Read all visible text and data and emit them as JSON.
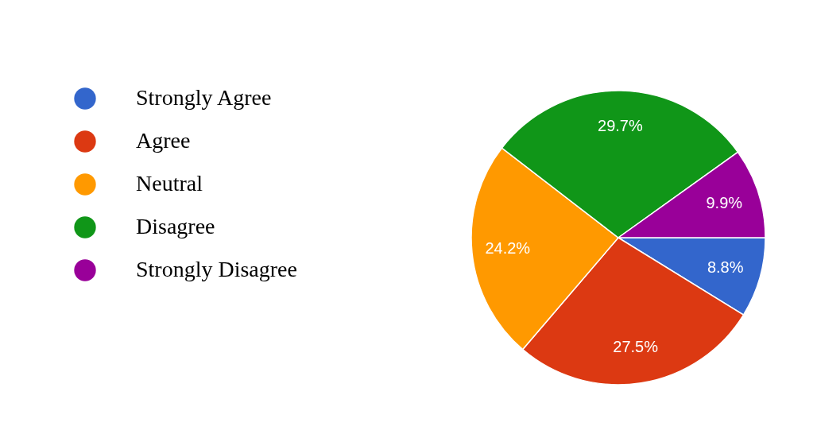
{
  "chart_data": {
    "type": "pie",
    "categories": [
      "Strongly Agree",
      "Agree",
      "Neutral",
      "Disagree",
      "Strongly Disagree"
    ],
    "values": [
      8.8,
      27.5,
      24.2,
      29.7,
      9.9
    ],
    "colors": [
      "#3366cc",
      "#dc3912",
      "#ff9900",
      "#109618",
      "#990099"
    ],
    "value_labels": [
      "8.8%",
      "27.5%",
      "24.2%",
      "29.7%",
      "9.9%"
    ],
    "legend": "left"
  }
}
